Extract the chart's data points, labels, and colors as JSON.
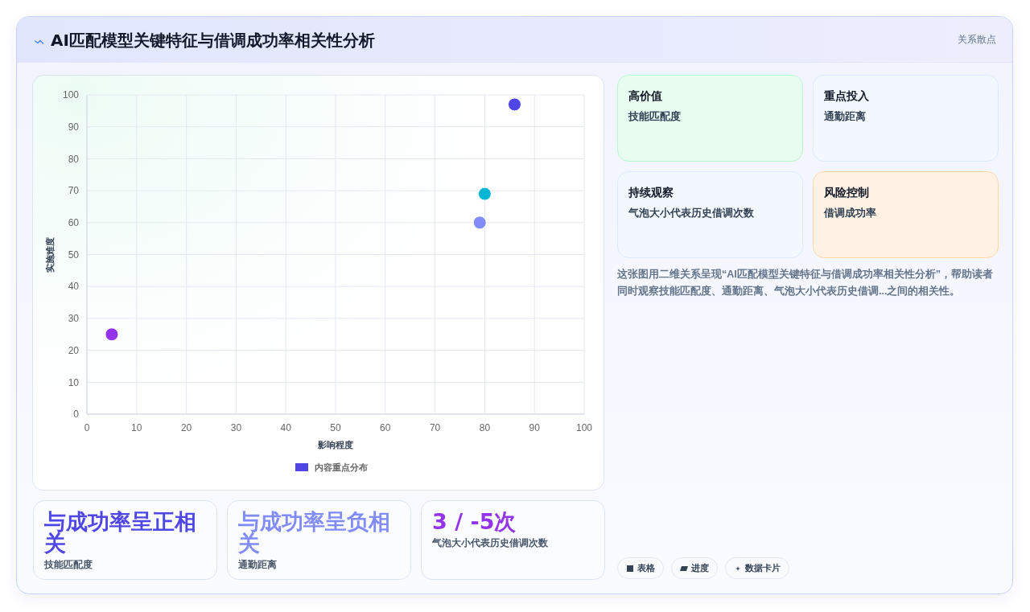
{
  "chart_data": [
    {
      "type": "other",
      "title": "AI匹配模型关键特征与借调成功率相关性分析",
      "annotations": [
        "关系散点"
      ]
    },
    {
      "type": "scatter",
      "xlabel": "影响程度",
      "ylabel": "实施难度",
      "series": [
        {
          "name": "内容重点分布",
          "color": "#4f46e5",
          "x": [
            86,
            80,
            79,
            5
          ],
          "values": [
            97,
            69,
            60,
            25
          ],
          "colors": [
            "#4f46e5",
            "#06b6d4",
            "#818cf8",
            "#9333ea"
          ]
        }
      ],
      "xlim": [
        0,
        100
      ],
      "xticks": [
        0,
        10,
        20,
        30,
        40,
        50,
        60,
        70,
        80,
        90,
        100
      ],
      "ylim": [
        0,
        100
      ],
      "yticks": [
        0,
        10,
        20,
        30,
        40,
        50,
        60,
        70,
        80,
        90,
        100
      ],
      "grid": true,
      "legend": "bottom",
      "marker": "circle"
    },
    {
      "type": "other",
      "categories": [
        "高价值",
        "重点投入",
        "持续观察",
        "风险控制"
      ],
      "colors": [
        "#bbf7d0",
        "#dbeafe",
        "#dbeafe",
        "#fed7aa"
      ],
      "annotations": [
        "技能匹配度",
        "通勤距离",
        "气泡大小代表历史借调次数",
        "借调成功率",
        "这张图用二维关系呈现“AI匹配模型关键特征与借调成功率相关性分析”，帮助读者同时观察技能匹配度、通勤距离、气泡大小代表历史借调...之间的相关性。"
      ]
    },
    {
      "type": "other",
      "categories": [
        "技能匹配度",
        "通勤距离",
        "气泡大小代表历史借调次数"
      ],
      "annotations": [
        "与成功率呈正相关",
        "与成功率呈负相关",
        "3 / -5次"
      ]
    },
    {
      "type": "other",
      "categories": [
        "表格",
        "进度",
        "数据卡片"
      ]
    }
  ]
}
